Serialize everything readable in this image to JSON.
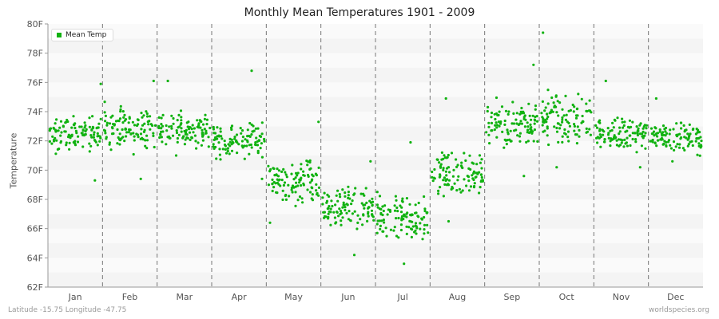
{
  "chart_data": {
    "type": "scatter",
    "title": "Monthly Mean Temperatures 1901 - 2009",
    "xlabel": "",
    "ylabel": "Temperature",
    "categories": [
      "Jan",
      "Feb",
      "Mar",
      "Apr",
      "May",
      "Jun",
      "Jul",
      "Aug",
      "Sep",
      "Oct",
      "Nov",
      "Dec"
    ],
    "yticks": [
      "62F",
      "64F",
      "66F",
      "68F",
      "70F",
      "72F",
      "74F",
      "76F",
      "78F",
      "80F"
    ],
    "ylim": [
      62,
      80
    ],
    "grid": "alternating horizontal bands, dashed vertical month separators",
    "legend": {
      "position": "top-left",
      "entries": [
        "Mean Temp"
      ]
    },
    "series": [
      {
        "name": "Mean Temp",
        "color": "#11b211",
        "monthly_ranges": [
          {
            "month": "Jan",
            "min": 69.3,
            "max": 75.9,
            "typical_low": 71.0,
            "typical_high": 74.0
          },
          {
            "month": "Feb",
            "min": 69.4,
            "max": 76.1,
            "typical_low": 71.2,
            "typical_high": 74.5
          },
          {
            "month": "Mar",
            "min": 71.0,
            "max": 76.1,
            "typical_low": 71.5,
            "typical_high": 74.0
          },
          {
            "month": "Apr",
            "min": 69.4,
            "max": 76.8,
            "typical_low": 70.5,
            "typical_high": 73.5
          },
          {
            "month": "May",
            "min": 66.4,
            "max": 73.3,
            "typical_low": 67.5,
            "typical_high": 71.0
          },
          {
            "month": "Jun",
            "min": 64.2,
            "max": 70.6,
            "typical_low": 65.5,
            "typical_high": 69.0
          },
          {
            "month": "Jul",
            "min": 63.6,
            "max": 71.9,
            "typical_low": 64.8,
            "typical_high": 68.5
          },
          {
            "month": "Aug",
            "min": 66.5,
            "max": 74.9,
            "typical_low": 68.0,
            "typical_high": 71.5
          },
          {
            "month": "Sep",
            "min": 69.6,
            "max": 77.2,
            "typical_low": 71.5,
            "typical_high": 75.0
          },
          {
            "month": "Oct",
            "min": 70.2,
            "max": 79.4,
            "typical_low": 71.5,
            "typical_high": 75.5
          },
          {
            "month": "Nov",
            "min": 70.2,
            "max": 76.1,
            "typical_low": 71.0,
            "typical_high": 74.0
          },
          {
            "month": "Dec",
            "min": 70.6,
            "max": 74.9,
            "typical_low": 71.0,
            "typical_high": 73.5
          }
        ]
      }
    ]
  },
  "footer": {
    "location": "Latitude -15.75 Longitude -47.75",
    "source": "worldspecies.org"
  }
}
